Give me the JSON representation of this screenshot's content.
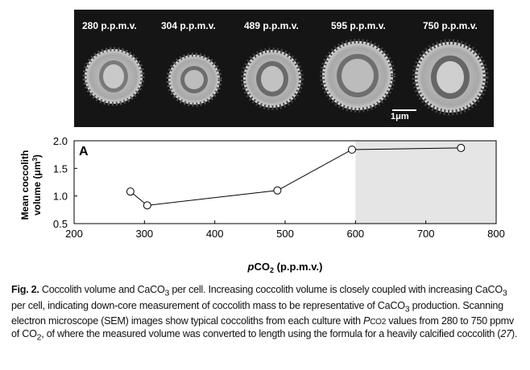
{
  "sem_panel": {
    "labels": [
      "280 p.p.m.v.",
      "304 p.p.m.v.",
      "489 p.p.m.v.",
      "595 p.p.m.v.",
      "750 p.p.m.v."
    ],
    "scale_bar": "1μm"
  },
  "chart_data": {
    "type": "line",
    "panel_label": "A",
    "xlabel_prefix": "p",
    "xlabel_main": "CO",
    "xlabel_sub": "2",
    "xlabel_units": " (p.p.m.v.)",
    "ylabel_line1": "Mean coccolith",
    "ylabel_line2_prefix": "volume (μm",
    "ylabel_line2_sup": "3",
    "ylabel_line2_suffix": ")",
    "x": [
      280,
      304,
      489,
      595,
      750
    ],
    "y": [
      1.08,
      0.83,
      1.1,
      1.84,
      1.87
    ],
    "xlim": [
      200,
      800
    ],
    "ylim": [
      0.5,
      2.0
    ],
    "xticks": [
      "200",
      "300",
      "400",
      "500",
      "600",
      "700",
      "800"
    ],
    "yticks": [
      "0.5",
      "1.0",
      "1.5",
      "2.0"
    ],
    "shaded_region": [
      600,
      800
    ],
    "shade_color": "#e5e5e5"
  },
  "caption": {
    "fig_label": "Fig. 2.",
    "t1": " Coccolith volume and CaCO",
    "t2": " per cell. Increasing coccolith volume is closely coupled with increasing CaCO",
    "t3": " per cell, indicating down-core measurement of coccolith mass to be representative of CaCO",
    "t4": " production. Scanning electron microscope (SEM) images show typical coccoliths from each culture with ",
    "pco2_italic": "P",
    "pco2_small": "CO2",
    "t5": " values from 280 to 750 ppmv of CO",
    "t6": ", of where the measured volume was converted to length using the formula for a heavily calcified coccolith (",
    "ref": "27",
    "t7": ").",
    "sub3": "3",
    "sub2": "2"
  }
}
